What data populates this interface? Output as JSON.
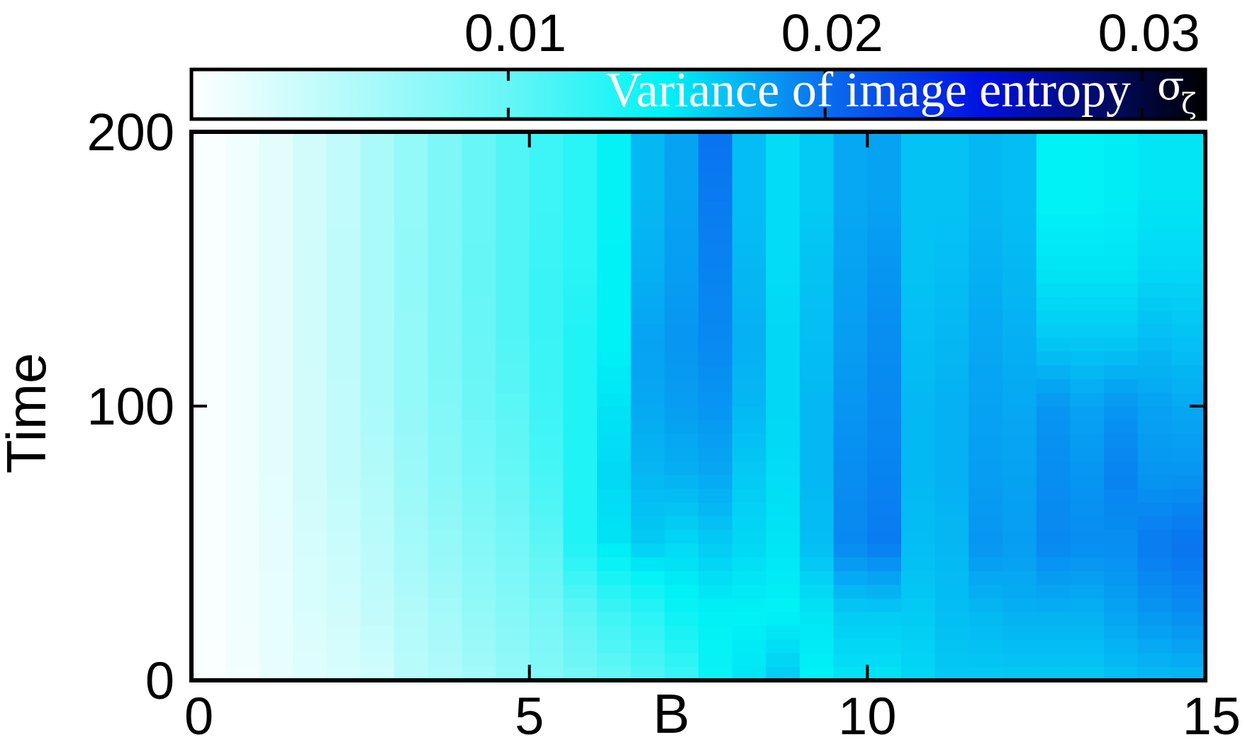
{
  "chart_data": {
    "type": "heatmap",
    "xlabel": "B",
    "ylabel": "Time",
    "xlim": [
      0,
      15
    ],
    "ylim": [
      0,
      200
    ],
    "x_ticks": [
      {
        "value": 0,
        "label": "0"
      },
      {
        "value": 5,
        "label": "5"
      },
      {
        "value": 10,
        "label": "10"
      },
      {
        "value": 15,
        "label": "15"
      }
    ],
    "y_ticks": [
      {
        "value": 0,
        "label": "0"
      },
      {
        "value": 100,
        "label": "100"
      },
      {
        "value": 200,
        "label": "200"
      }
    ],
    "colorbar": {
      "title": "Variance of image entropy",
      "symbol": "σ",
      "symbol_sub": "ζ",
      "range": [
        0,
        0.032
      ],
      "ticks": [
        {
          "value": 0.01,
          "label": "0.01"
        },
        {
          "value": 0.02,
          "label": "0.02"
        },
        {
          "value": 0.03,
          "label": "0.03"
        }
      ],
      "colormap": [
        {
          "value": 0.0,
          "color": "#ffffff"
        },
        {
          "value": 0.01,
          "color": "#66f6f6"
        },
        {
          "value": 0.015,
          "color": "#00f2f6"
        },
        {
          "value": 0.02,
          "color": "#0a6ef0"
        },
        {
          "value": 0.025,
          "color": "#0010e0"
        },
        {
          "value": 0.029,
          "color": "#000a60"
        },
        {
          "value": 0.032,
          "color": "#000000"
        }
      ]
    },
    "b_bin_width": 0.5,
    "time_rows": [
      0,
      25,
      50,
      75,
      100,
      125,
      150,
      175,
      200
    ],
    "columns": [
      {
        "b": 0.0,
        "values": [
          0.0003,
          0.0004,
          0.0004,
          0.0004,
          0.0004,
          0.0004,
          0.0004,
          0.0004,
          0.0004
        ]
      },
      {
        "b": 0.5,
        "values": [
          0.0008,
          0.0009,
          0.001,
          0.001,
          0.001,
          0.001,
          0.001,
          0.001,
          0.001
        ]
      },
      {
        "b": 1.0,
        "values": [
          0.0015,
          0.0016,
          0.0017,
          0.0018,
          0.0018,
          0.0018,
          0.0018,
          0.0018,
          0.0018
        ]
      },
      {
        "b": 1.5,
        "values": [
          0.002,
          0.0025,
          0.0027,
          0.003,
          0.003,
          0.003,
          0.003,
          0.003,
          0.003
        ]
      },
      {
        "b": 2.0,
        "values": [
          0.0025,
          0.003,
          0.0035,
          0.004,
          0.004,
          0.0042,
          0.0042,
          0.004,
          0.004
        ]
      },
      {
        "b": 2.5,
        "values": [
          0.003,
          0.004,
          0.0045,
          0.005,
          0.0055,
          0.0055,
          0.0055,
          0.0055,
          0.0055
        ]
      },
      {
        "b": 3.0,
        "values": [
          0.0045,
          0.005,
          0.006,
          0.0065,
          0.007,
          0.007,
          0.0072,
          0.007,
          0.007
        ]
      },
      {
        "b": 3.5,
        "values": [
          0.005,
          0.006,
          0.007,
          0.0078,
          0.0082,
          0.0085,
          0.0085,
          0.0085,
          0.0085
        ]
      },
      {
        "b": 4.0,
        "values": [
          0.006,
          0.007,
          0.008,
          0.009,
          0.0095,
          0.0098,
          0.01,
          0.0098,
          0.0098
        ]
      },
      {
        "b": 4.5,
        "values": [
          0.007,
          0.008,
          0.009,
          0.01,
          0.0105,
          0.011,
          0.011,
          0.011,
          0.011
        ]
      },
      {
        "b": 5.0,
        "values": [
          0.008,
          0.009,
          0.0105,
          0.0115,
          0.012,
          0.0122,
          0.0122,
          0.012,
          0.012
        ]
      },
      {
        "b": 5.5,
        "values": [
          0.009,
          0.0105,
          0.0135,
          0.0135,
          0.0135,
          0.0135,
          0.013,
          0.013,
          0.013
        ]
      },
      {
        "b": 6.0,
        "values": [
          0.01,
          0.012,
          0.0155,
          0.016,
          0.0155,
          0.015,
          0.015,
          0.0148,
          0.0148
        ]
      },
      {
        "b": 6.5,
        "values": [
          0.011,
          0.013,
          0.0165,
          0.0172,
          0.0178,
          0.018,
          0.0175,
          0.0172,
          0.0172
        ]
      },
      {
        "b": 7.0,
        "values": [
          0.012,
          0.0145,
          0.016,
          0.0175,
          0.0182,
          0.0185,
          0.0182,
          0.018,
          0.018
        ]
      },
      {
        "b": 7.5,
        "values": [
          0.0145,
          0.015,
          0.0165,
          0.0178,
          0.0185,
          0.019,
          0.0192,
          0.0195,
          0.0198
        ]
      },
      {
        "b": 8.0,
        "values": [
          0.0155,
          0.015,
          0.016,
          0.0165,
          0.0172,
          0.0175,
          0.0172,
          0.017,
          0.017
        ]
      },
      {
        "b": 8.5,
        "values": [
          0.0165,
          0.015,
          0.0155,
          0.0158,
          0.016,
          0.016,
          0.0158,
          0.0158,
          0.0158
        ]
      },
      {
        "b": 9.0,
        "values": [
          0.015,
          0.0155,
          0.017,
          0.0172,
          0.0172,
          0.017,
          0.0168,
          0.0165,
          0.0165
        ]
      },
      {
        "b": 9.5,
        "values": [
          0.0155,
          0.0165,
          0.019,
          0.0188,
          0.0185,
          0.0182,
          0.018,
          0.0178,
          0.0178
        ]
      },
      {
        "b": 10.0,
        "values": [
          0.0155,
          0.0165,
          0.0195,
          0.0192,
          0.019,
          0.0188,
          0.0185,
          0.018,
          0.018
        ]
      },
      {
        "b": 10.5,
        "values": [
          0.016,
          0.0165,
          0.017,
          0.0172,
          0.0172,
          0.017,
          0.0168,
          0.0168,
          0.0168
        ]
      },
      {
        "b": 11.0,
        "values": [
          0.0165,
          0.017,
          0.0172,
          0.0175,
          0.0175,
          0.0172,
          0.017,
          0.0168,
          0.0168
        ]
      },
      {
        "b": 11.5,
        "values": [
          0.0165,
          0.0172,
          0.0185,
          0.0182,
          0.018,
          0.0178,
          0.0175,
          0.0172,
          0.0172
        ]
      },
      {
        "b": 12.0,
        "values": [
          0.0165,
          0.0175,
          0.0182,
          0.018,
          0.0178,
          0.0175,
          0.0172,
          0.017,
          0.017
        ]
      },
      {
        "b": 12.5,
        "values": [
          0.0165,
          0.0175,
          0.019,
          0.0188,
          0.0185,
          0.0165,
          0.0155,
          0.015,
          0.015
        ]
      },
      {
        "b": 13.0,
        "values": [
          0.0165,
          0.0175,
          0.0188,
          0.0185,
          0.018,
          0.0165,
          0.0155,
          0.015,
          0.015
        ]
      },
      {
        "b": 13.5,
        "values": [
          0.0168,
          0.018,
          0.0188,
          0.0192,
          0.0185,
          0.0165,
          0.0155,
          0.0152,
          0.0152
        ]
      },
      {
        "b": 14.0,
        "values": [
          0.017,
          0.0185,
          0.0195,
          0.0185,
          0.018,
          0.017,
          0.016,
          0.0155,
          0.0155
        ]
      },
      {
        "b": 14.5,
        "values": [
          0.0172,
          0.0188,
          0.0198,
          0.0185,
          0.0178,
          0.0168,
          0.016,
          0.0155,
          0.0155
        ]
      }
    ]
  }
}
